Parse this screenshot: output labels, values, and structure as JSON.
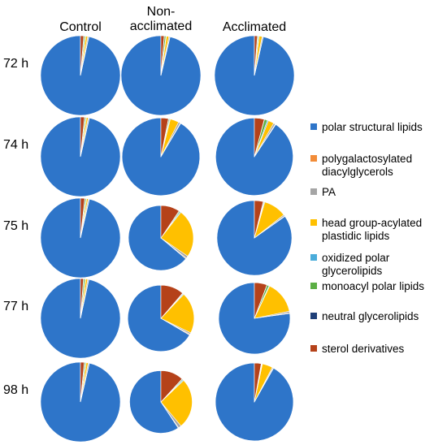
{
  "chart_data": {
    "type": "pie",
    "columns": [
      "Control",
      "Non-\nacclimated",
      "Acclimated"
    ],
    "rows": [
      "72 h",
      "74 h",
      "75 h",
      "77 h",
      "98 h"
    ],
    "categories": [
      "polar structural lipids",
      "polygalactosylated\ndiacylglycerols",
      "PA",
      "head group-acylated\nplastidic lipids",
      "oxidized polar\nglycerolipids",
      "monoacyl polar lipids",
      "neutral glycerolipids",
      "sterol derivatives"
    ],
    "colors": [
      "#2E75C9",
      "#F28C38",
      "#A5A5A5",
      "#FFC000",
      "#4AACDA",
      "#5BAE44",
      "#1F3F78",
      "#B5421A"
    ],
    "pies": [
      {
        "row": "72 h",
        "column": "Control",
        "values": [
          96.6,
          0.1,
          0.4,
          0.8,
          0.2,
          0.5,
          0.1,
          1.3
        ]
      },
      {
        "row": "72 h",
        "column": "Non-\nacclimated",
        "values": [
          96.3,
          0.1,
          0.4,
          1.0,
          0.2,
          0.6,
          0.1,
          1.3
        ]
      },
      {
        "row": "72 h",
        "column": "Acclimated",
        "values": [
          96.4,
          0.1,
          0.4,
          1.2,
          0.2,
          0.4,
          0.1,
          1.2
        ]
      },
      {
        "row": "74 h",
        "column": "Control",
        "values": [
          96.4,
          0.1,
          0.4,
          0.7,
          0.2,
          0.5,
          0.1,
          1.6
        ]
      },
      {
        "row": "74 h",
        "column": "Non-\nacclimated",
        "values": [
          91.5,
          0.2,
          0.8,
          3.6,
          0.3,
          0.4,
          0.1,
          3.1
        ]
      },
      {
        "row": "74 h",
        "column": "Acclimated",
        "values": [
          90.7,
          0.2,
          0.8,
          2.4,
          0.5,
          1.2,
          0.1,
          4.1
        ]
      },
      {
        "row": "75 h",
        "column": "Control",
        "values": [
          96.4,
          0.1,
          0.4,
          0.6,
          0.2,
          0.5,
          0.1,
          1.7
        ]
      },
      {
        "row": "75 h",
        "column": "Non-\nacclimated",
        "values": [
          63.9,
          0.4,
          1.2,
          24.0,
          0.5,
          0.5,
          0.1,
          9.4
        ]
      },
      {
        "row": "75 h",
        "column": "Acclimated",
        "values": [
          84.8,
          0.2,
          0.6,
          9.9,
          0.3,
          0.3,
          0.1,
          3.8
        ]
      },
      {
        "row": "77 h",
        "column": "Control",
        "values": [
          96.6,
          0.1,
          0.4,
          0.8,
          0.2,
          0.6,
          0.1,
          1.2
        ]
      },
      {
        "row": "77 h",
        "column": "Non-\nacclimated",
        "values": [
          66.6,
          0.4,
          0.8,
          20.1,
          0.4,
          0.3,
          0.1,
          11.3
        ]
      },
      {
        "row": "77 h",
        "column": "Acclimated",
        "values": [
          77.2,
          0.3,
          0.7,
          14.8,
          0.3,
          0.9,
          0.1,
          5.7
        ]
      },
      {
        "row": "98 h",
        "column": "Control",
        "values": [
          96.4,
          0.1,
          0.4,
          0.8,
          0.2,
          0.5,
          0.1,
          1.5
        ]
      },
      {
        "row": "98 h",
        "column": "Non-\nacclimated",
        "values": [
          59.3,
          0.3,
          1.5,
          26.0,
          0.5,
          0.5,
          0.1,
          11.8
        ]
      },
      {
        "row": "98 h",
        "column": "Acclimated",
        "values": [
          91.8,
          0.2,
          0.4,
          4.3,
          0.2,
          0.2,
          0.1,
          2.8
        ]
      }
    ]
  }
}
